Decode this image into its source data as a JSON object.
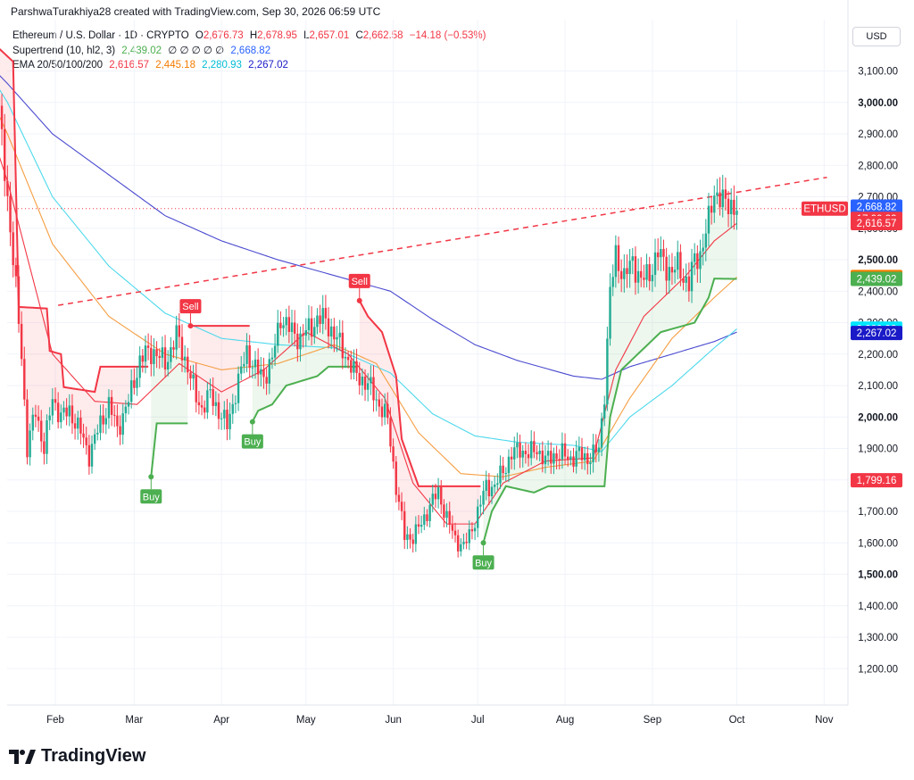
{
  "header": {
    "text": "ParshwaTurakhiya28 created with TradingView.com, Sep 30, 2026 06:59 UTC"
  },
  "legend": {
    "symbol": "Ethereum / U.S. Dollar · 1D · CRYPTO",
    "o_label": "O",
    "o": "2,676.73",
    "h_label": "H",
    "h": "2,678.95",
    "l_label": "L",
    "l": "2,657.01",
    "c_label": "C",
    "c": "2,662.58",
    "change": "−14.18 (−0.53%)",
    "supertrend_label": "Supertrend (10, hl2, 3)",
    "supertrend_v1": "2,439.02",
    "supertrend_mid": "∅ ∅ ∅ ∅ ∅",
    "supertrend_v2": "2,668.82",
    "ema_label": "EMA 20/50/100/200",
    "ema20": "2,616.57",
    "ema50": "2,445.18",
    "ema100": "2,280.93",
    "ema200": "2,267.02"
  },
  "currency": "USD",
  "footer": {
    "brand": "TradingView"
  },
  "colors": {
    "up": "#22ab94",
    "down": "#f23645",
    "ema20": "#f23645",
    "ema50": "#f59e42",
    "ema100": "#4dd9ec",
    "ema200": "#4a4ad0",
    "st_up": "#4caf50",
    "st_down": "#f23645",
    "trendline": "#f23645"
  },
  "chart_data": {
    "type": "candlestick",
    "symbol": "ETHUSD",
    "ylim": [
      1100,
      3200
    ],
    "y_ticks": [
      1200,
      1300,
      1400,
      1500,
      1600,
      1700,
      1800,
      1900,
      2000,
      2100,
      2200,
      2300,
      2400,
      2500,
      2600,
      2700,
      2800,
      2900,
      3000,
      3100
    ],
    "y_tick_labels": [
      "1,200.00",
      "1,300.00",
      "1,400.00",
      "1,500.00",
      "1,600.00",
      "1,700.00",
      "1,800.00",
      "1,900.00",
      "2,000.00",
      "2,100.00",
      "2,200.00",
      "2,300.00",
      "2,400.00",
      "2,500.00",
      "2,600.00",
      "2,700.00",
      "2,800.00",
      "2,900.00",
      "3,000.00",
      "3,100.00"
    ],
    "bold_ticks": [
      1500,
      2000,
      2500,
      3000
    ],
    "x_months": [
      {
        "label": "Feb",
        "day": 31
      },
      {
        "label": "Mar",
        "day": 59
      },
      {
        "label": "Apr",
        "day": 90
      },
      {
        "label": "May",
        "day": 120
      },
      {
        "label": "Jun",
        "day": 151
      },
      {
        "label": "Jul",
        "day": 181
      },
      {
        "label": "Aug",
        "day": 212
      },
      {
        "label": "Sep",
        "day": 243
      },
      {
        "label": "Oct",
        "day": 273
      },
      {
        "label": "Nov",
        "day": 304
      }
    ],
    "close_anchors": [
      [
        1,
        2850
      ],
      [
        5,
        2980
      ],
      [
        10,
        3050
      ],
      [
        14,
        2700
      ],
      [
        17,
        2400
      ],
      [
        19,
        2200
      ],
      [
        21,
        1900
      ],
      [
        24,
        2020
      ],
      [
        27,
        1900
      ],
      [
        30,
        2060
      ],
      [
        33,
        2000
      ],
      [
        36,
        2020
      ],
      [
        40,
        1950
      ],
      [
        43,
        1880
      ],
      [
        47,
        1980
      ],
      [
        50,
        2040
      ],
      [
        53,
        1960
      ],
      [
        57,
        2050
      ],
      [
        61,
        2180
      ],
      [
        63,
        2200
      ],
      [
        66,
        2210
      ],
      [
        70,
        2170
      ],
      [
        74,
        2260
      ],
      [
        78,
        2160
      ],
      [
        81,
        2060
      ],
      [
        83,
        2030
      ],
      [
        86,
        2070
      ],
      [
        89,
        2020
      ],
      [
        92,
        1970
      ],
      [
        95,
        2080
      ],
      [
        99,
        2210
      ],
      [
        102,
        2150
      ],
      [
        105,
        2130
      ],
      [
        108,
        2180
      ],
      [
        111,
        2320
      ],
      [
        114,
        2280
      ],
      [
        118,
        2250
      ],
      [
        121,
        2280
      ],
      [
        124,
        2310
      ],
      [
        127,
        2310
      ],
      [
        130,
        2260
      ],
      [
        134,
        2200
      ],
      [
        137,
        2140
      ],
      [
        140,
        2120
      ],
      [
        143,
        2090
      ],
      [
        146,
        2040
      ],
      [
        149,
        1990
      ],
      [
        152,
        1780
      ],
      [
        155,
        1620
      ],
      [
        158,
        1620
      ],
      [
        161,
        1660
      ],
      [
        164,
        1720
      ],
      [
        167,
        1760
      ],
      [
        170,
        1680
      ],
      [
        173,
        1610
      ],
      [
        176,
        1590
      ],
      [
        178,
        1620
      ],
      [
        181,
        1700
      ],
      [
        184,
        1780
      ],
      [
        187,
        1780
      ],
      [
        190,
        1830
      ],
      [
        193,
        1880
      ],
      [
        196,
        1900
      ],
      [
        199,
        1880
      ],
      [
        202,
        1900
      ],
      [
        205,
        1860
      ],
      [
        208,
        1880
      ],
      [
        211,
        1880
      ],
      [
        214,
        1870
      ],
      [
        217,
        1880
      ],
      [
        220,
        1870
      ],
      [
        222,
        1880
      ],
      [
        224,
        1900
      ],
      [
        226,
        2080
      ],
      [
        228,
        2390
      ],
      [
        230,
        2520
      ],
      [
        233,
        2440
      ],
      [
        236,
        2500
      ],
      [
        239,
        2430
      ],
      [
        242,
        2460
      ],
      [
        245,
        2520
      ],
      [
        248,
        2480
      ],
      [
        250,
        2460
      ],
      [
        252,
        2480
      ],
      [
        254,
        2450
      ],
      [
        256,
        2420
      ],
      [
        258,
        2500
      ],
      [
        260,
        2520
      ],
      [
        263,
        2620
      ],
      [
        265,
        2720
      ],
      [
        267,
        2700
      ],
      [
        269,
        2670
      ],
      [
        271,
        2680
      ],
      [
        273,
        2663
      ]
    ],
    "wick_pct": 0.018,
    "supertrend": [
      {
        "day": 1,
        "value": 3000,
        "trend": "up"
      },
      {
        "day": 9,
        "value": 3000,
        "trend": "up"
      },
      {
        "day": 10,
        "value": 3180,
        "trend": "down"
      },
      {
        "day": 16,
        "value": 3130,
        "trend": "down"
      },
      {
        "day": 18,
        "value": 2350,
        "trend": "down"
      },
      {
        "day": 28,
        "value": 2345,
        "trend": "down"
      },
      {
        "day": 29,
        "value": 2210,
        "trend": "down"
      },
      {
        "day": 33,
        "value": 2200,
        "trend": "down"
      },
      {
        "day": 34,
        "value": 2095,
        "trend": "down"
      },
      {
        "day": 45,
        "value": 2080,
        "trend": "down"
      },
      {
        "day": 47,
        "value": 2160,
        "trend": "down"
      },
      {
        "day": 64,
        "value": 2160,
        "trend": "down"
      },
      {
        "day": 65,
        "value": 1810,
        "trend": "up"
      },
      {
        "day": 67,
        "value": 1980,
        "trend": "up"
      },
      {
        "day": 78,
        "value": 1980,
        "trend": "up"
      },
      {
        "day": 79,
        "value": 2290,
        "trend": "down"
      },
      {
        "day": 100,
        "value": 2290,
        "trend": "down"
      },
      {
        "day": 101,
        "value": 1985,
        "trend": "up"
      },
      {
        "day": 103,
        "value": 2020,
        "trend": "up"
      },
      {
        "day": 108,
        "value": 2040,
        "trend": "up"
      },
      {
        "day": 113,
        "value": 2100,
        "trend": "up"
      },
      {
        "day": 124,
        "value": 2130,
        "trend": "up"
      },
      {
        "day": 128,
        "value": 2160,
        "trend": "up"
      },
      {
        "day": 138,
        "value": 2160,
        "trend": "up"
      },
      {
        "day": 139,
        "value": 2370,
        "trend": "down"
      },
      {
        "day": 142,
        "value": 2320,
        "trend": "down"
      },
      {
        "day": 147,
        "value": 2270,
        "trend": "down"
      },
      {
        "day": 152,
        "value": 2130,
        "trend": "down"
      },
      {
        "day": 154,
        "value": 1930,
        "trend": "down"
      },
      {
        "day": 160,
        "value": 1780,
        "trend": "down"
      },
      {
        "day": 171,
        "value": 1780,
        "trend": "down"
      },
      {
        "day": 177,
        "value": 1780,
        "trend": "down"
      },
      {
        "day": 182,
        "value": 1780,
        "trend": "down"
      },
      {
        "day": 183,
        "value": 1600,
        "trend": "up"
      },
      {
        "day": 186,
        "value": 1700,
        "trend": "up"
      },
      {
        "day": 191,
        "value": 1780,
        "trend": "up"
      },
      {
        "day": 201,
        "value": 1760,
        "trend": "up"
      },
      {
        "day": 206,
        "value": 1780,
        "trend": "up"
      },
      {
        "day": 226,
        "value": 1780,
        "trend": "up"
      },
      {
        "day": 228,
        "value": 2000,
        "trend": "up"
      },
      {
        "day": 232,
        "value": 2150,
        "trend": "up"
      },
      {
        "day": 246,
        "value": 2270,
        "trend": "up"
      },
      {
        "day": 258,
        "value": 2300,
        "trend": "up"
      },
      {
        "day": 263,
        "value": 2380,
        "trend": "up"
      },
      {
        "day": 265,
        "value": 2440,
        "trend": "up"
      },
      {
        "day": 273,
        "value": 2439,
        "trend": "up"
      }
    ],
    "ema200": [
      [
        1,
        3180
      ],
      [
        14,
        3060
      ],
      [
        30,
        2900
      ],
      [
        50,
        2770
      ],
      [
        70,
        2640
      ],
      [
        90,
        2560
      ],
      [
        110,
        2500
      ],
      [
        130,
        2450
      ],
      [
        150,
        2400
      ],
      [
        165,
        2310
      ],
      [
        180,
        2230
      ],
      [
        195,
        2180
      ],
      [
        215,
        2130
      ],
      [
        225,
        2120
      ],
      [
        235,
        2160
      ],
      [
        250,
        2200
      ],
      [
        265,
        2240
      ],
      [
        273,
        2270
      ]
    ],
    "ema100": [
      [
        1,
        3190
      ],
      [
        14,
        3000
      ],
      [
        30,
        2700
      ],
      [
        50,
        2480
      ],
      [
        70,
        2330
      ],
      [
        90,
        2250
      ],
      [
        110,
        2230
      ],
      [
        130,
        2220
      ],
      [
        150,
        2140
      ],
      [
        165,
        2010
      ],
      [
        180,
        1940
      ],
      [
        195,
        1920
      ],
      [
        215,
        1910
      ],
      [
        225,
        1890
      ],
      [
        235,
        2000
      ],
      [
        250,
        2100
      ],
      [
        265,
        2220
      ],
      [
        273,
        2280
      ]
    ],
    "ema50": [
      [
        1,
        3150
      ],
      [
        14,
        2900
      ],
      [
        30,
        2550
      ],
      [
        50,
        2320
      ],
      [
        70,
        2200
      ],
      [
        90,
        2150
      ],
      [
        110,
        2170
      ],
      [
        130,
        2230
      ],
      [
        145,
        2170
      ],
      [
        160,
        1950
      ],
      [
        175,
        1820
      ],
      [
        190,
        1810
      ],
      [
        205,
        1840
      ],
      [
        222,
        1860
      ],
      [
        235,
        2060
      ],
      [
        250,
        2250
      ],
      [
        265,
        2380
      ],
      [
        273,
        2445
      ]
    ],
    "ema20": [
      [
        1,
        3100
      ],
      [
        14,
        2750
      ],
      [
        30,
        2200
      ],
      [
        45,
        2050
      ],
      [
        60,
        2040
      ],
      [
        75,
        2170
      ],
      [
        90,
        2080
      ],
      [
        105,
        2150
      ],
      [
        120,
        2270
      ],
      [
        135,
        2200
      ],
      [
        148,
        2060
      ],
      [
        158,
        1790
      ],
      [
        170,
        1660
      ],
      [
        180,
        1660
      ],
      [
        190,
        1790
      ],
      [
        205,
        1860
      ],
      [
        222,
        1870
      ],
      [
        230,
        2150
      ],
      [
        240,
        2320
      ],
      [
        255,
        2450
      ],
      [
        265,
        2560
      ],
      [
        273,
        2616
      ]
    ],
    "trendline": {
      "start": [
        32,
        2355
      ],
      "end": [
        305,
        2762
      ]
    },
    "signals": [
      {
        "label": "Buy",
        "day": 65,
        "value": 1810
      },
      {
        "label": "Sell",
        "day": 79,
        "value": 2290
      },
      {
        "label": "Buy",
        "day": 101,
        "value": 1985
      },
      {
        "label": "Sell",
        "day": 139,
        "value": 2370
      },
      {
        "label": "Buy",
        "day": 183,
        "value": 1600
      }
    ],
    "price_labels": [
      {
        "text": "2,668.82",
        "value": 2668.82,
        "color": "#2962ff"
      },
      {
        "text": "17:00:22",
        "value": 2630,
        "color": "#f23645"
      },
      {
        "text": "2,616.57",
        "value": 2616.57,
        "color": "#f23645"
      },
      {
        "text": "2,445.18",
        "value": 2445.18,
        "color": "#f57c00"
      },
      {
        "text": "2,439.02",
        "value": 2439.02,
        "color": "#4caf50"
      },
      {
        "text": "2,280.93",
        "value": 2280.93,
        "color": "#00e5ff"
      },
      {
        "text": "2,267.02",
        "value": 2267.02,
        "color": "#1a1ac8"
      },
      {
        "text": "1,799.16",
        "value": 1799.16,
        "color": "#f23645"
      }
    ],
    "symbol_badge": {
      "text": "ETHUSD",
      "value": 2662.58,
      "color": "#f23645"
    }
  }
}
